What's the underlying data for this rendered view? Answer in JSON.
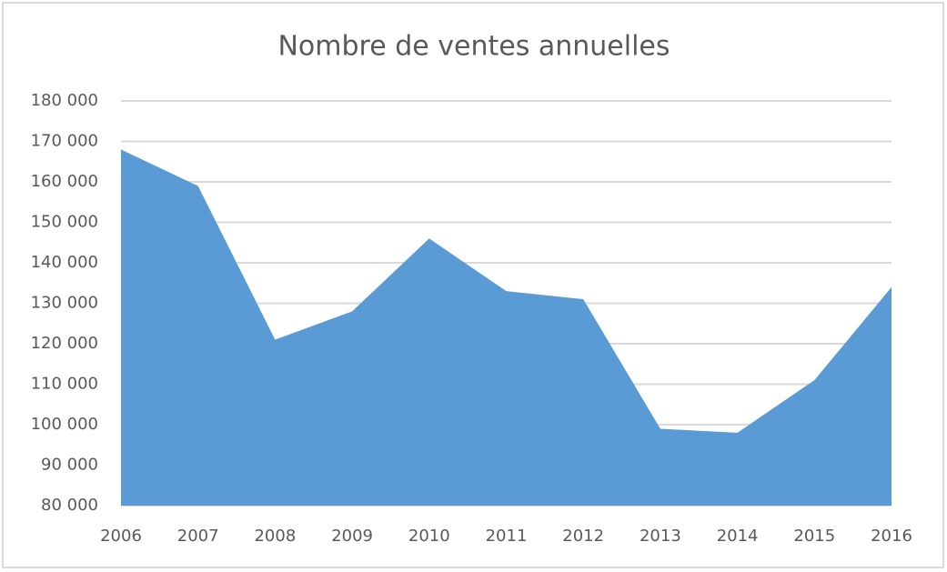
{
  "chart_data": {
    "type": "area",
    "title": "Nombre de ventes annuelles",
    "categories": [
      "2006",
      "2007",
      "2008",
      "2009",
      "2010",
      "2011",
      "2012",
      "2013",
      "2014",
      "2015",
      "2016"
    ],
    "values": [
      168000,
      159000,
      121000,
      128000,
      146000,
      133000,
      131000,
      99000,
      98000,
      111000,
      134000
    ],
    "color": "#5b9bd5",
    "ylim": [
      80000,
      180000
    ],
    "yticks": [
      {
        "value": 80000,
        "label": "80 000"
      },
      {
        "value": 90000,
        "label": "90 000"
      },
      {
        "value": 100000,
        "label": "100 000"
      },
      {
        "value": 110000,
        "label": "110 000"
      },
      {
        "value": 120000,
        "label": "120 000"
      },
      {
        "value": 130000,
        "label": "130 000"
      },
      {
        "value": 140000,
        "label": "140 000"
      },
      {
        "value": 150000,
        "label": "150 000"
      },
      {
        "value": 160000,
        "label": "160 000"
      },
      {
        "value": 170000,
        "label": "170 000"
      },
      {
        "value": 180000,
        "label": "180 000"
      }
    ],
    "grid": true
  }
}
